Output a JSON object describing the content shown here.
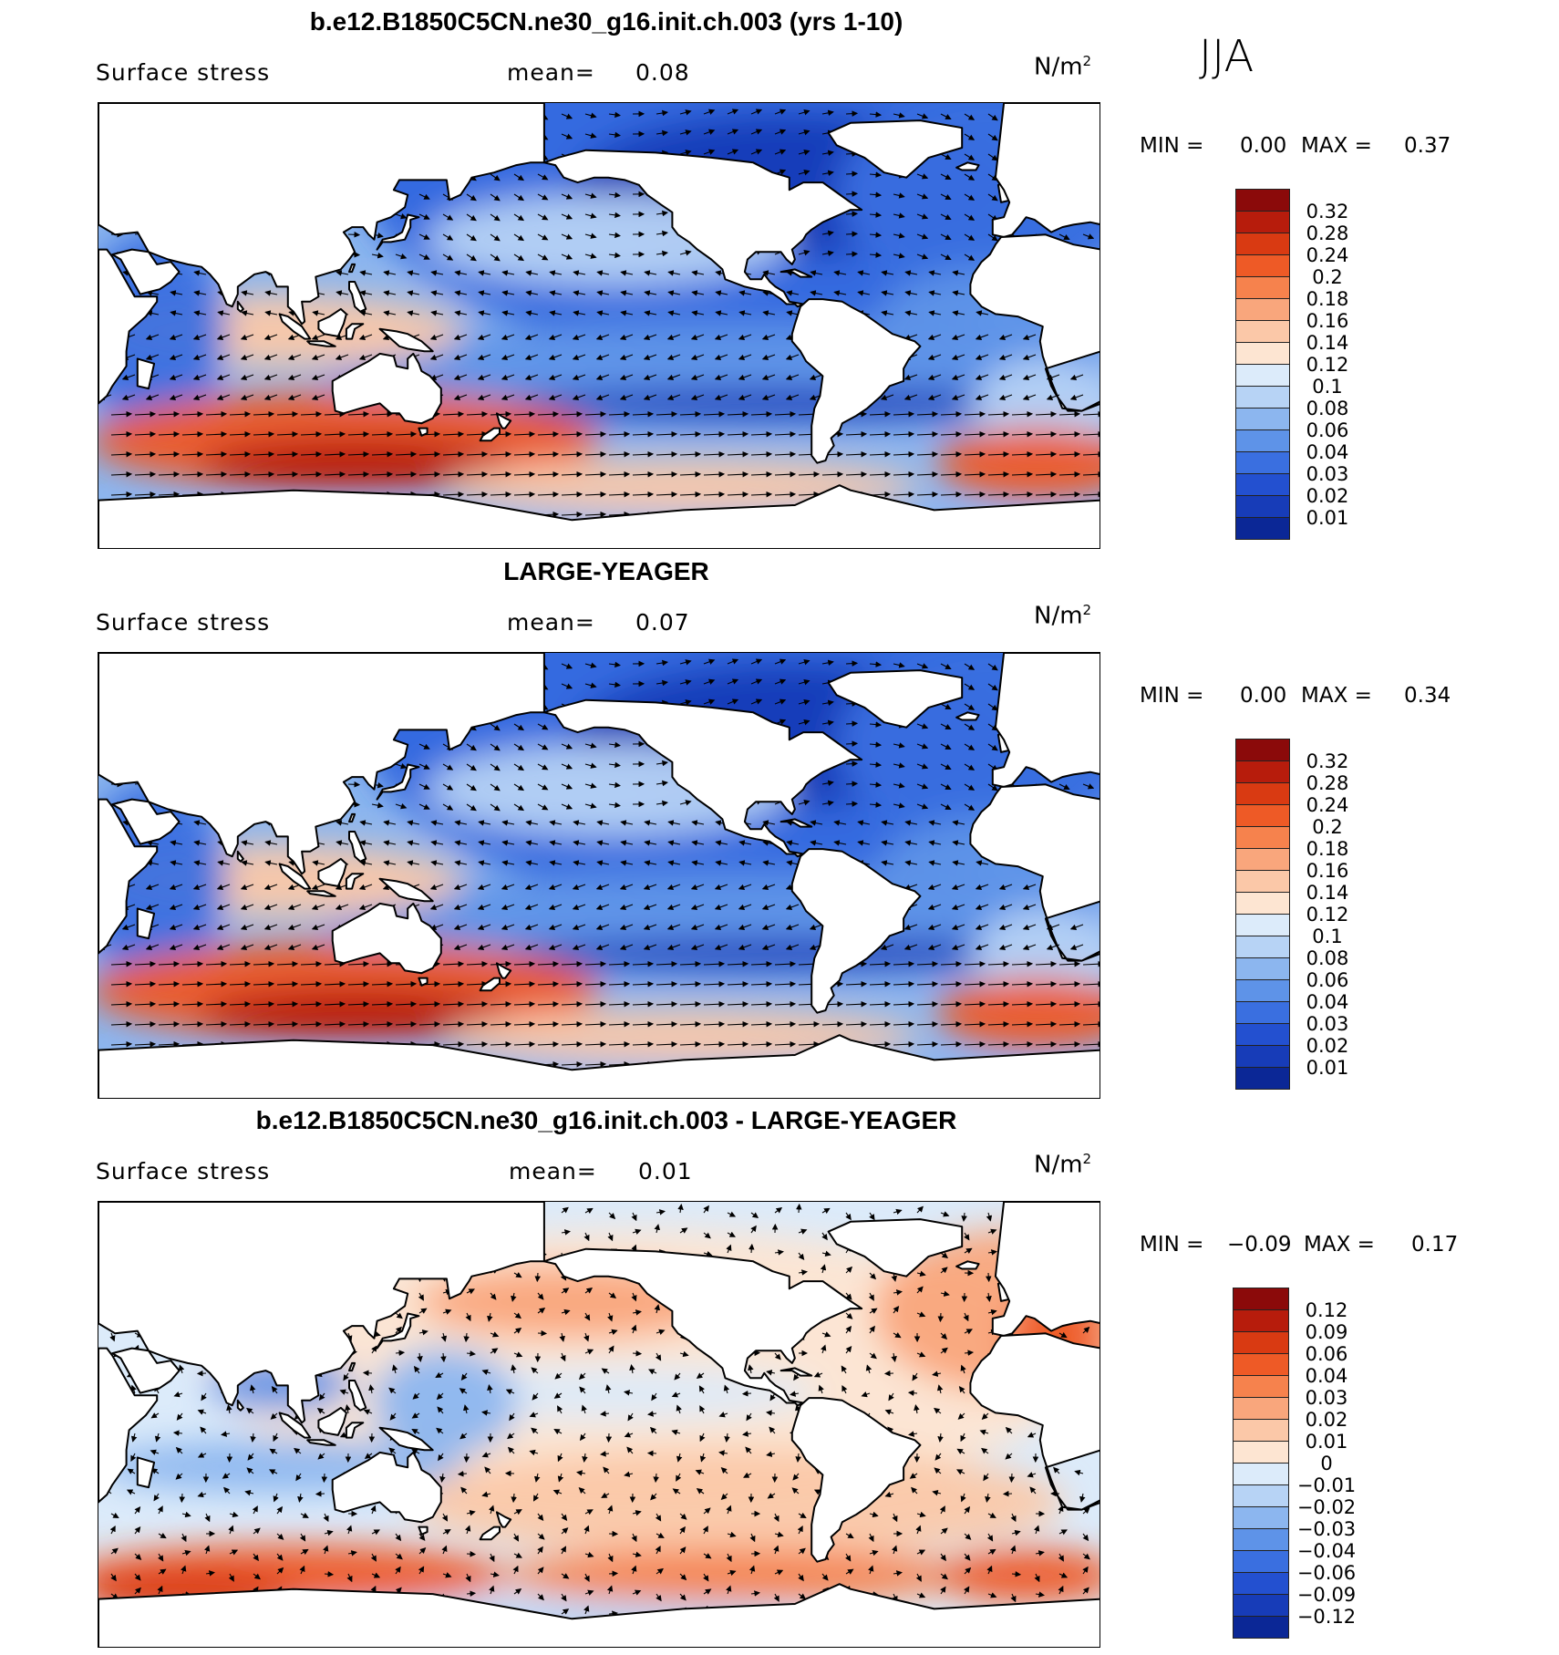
{
  "season": "JJA",
  "colors": {
    "land": "#ffffff",
    "coast": "#000000",
    "arrow": "#000000"
  },
  "panels": [
    {
      "title": "b.e12.B1850C5CN.ne30_g16.init.ch.003 (yrs 1-10)",
      "variable": "Surface stress",
      "mean_label": "mean=",
      "mean_value": "0.08",
      "units": "N/m",
      "units_sup": "2",
      "min_label": "MIN =",
      "min_value": "0.00",
      "max_label": "MAX =",
      "max_value": "0.37",
      "colorbar": {
        "labels": [
          "0.32",
          "0.28",
          "0.24",
          "0.2",
          "0.18",
          "0.16",
          "0.14",
          "0.12",
          "0.1",
          "0.08",
          "0.06",
          "0.04",
          "0.03",
          "0.02",
          "0.01"
        ],
        "colors": [
          "#8b0a0a",
          "#b71c0c",
          "#d93a12",
          "#ee5a26",
          "#f6824d",
          "#f9a67c",
          "#fbc8a8",
          "#fde5d2",
          "#dcebfa",
          "#b7d3f5",
          "#8cb6ef",
          "#5e93e8",
          "#3a6fe0",
          "#2350d0",
          "#173cb8",
          "#0b2796"
        ]
      },
      "map_type": "positive"
    },
    {
      "title": "LARGE-YEAGER",
      "variable": "Surface stress",
      "mean_label": "mean=",
      "mean_value": "0.07",
      "units": "N/m",
      "units_sup": "2",
      "min_label": "MIN =",
      "min_value": "0.00",
      "max_label": "MAX =",
      "max_value": "0.34",
      "colorbar": {
        "labels": [
          "0.32",
          "0.28",
          "0.24",
          "0.2",
          "0.18",
          "0.16",
          "0.14",
          "0.12",
          "0.1",
          "0.08",
          "0.06",
          "0.04",
          "0.03",
          "0.02",
          "0.01"
        ],
        "colors": [
          "#8b0a0a",
          "#b71c0c",
          "#d93a12",
          "#ee5a26",
          "#f6824d",
          "#f9a67c",
          "#fbc8a8",
          "#fde5d2",
          "#dcebfa",
          "#b7d3f5",
          "#8cb6ef",
          "#5e93e8",
          "#3a6fe0",
          "#2350d0",
          "#173cb8",
          "#0b2796"
        ]
      },
      "map_type": "positive"
    },
    {
      "title": "b.e12.B1850C5CN.ne30_g16.init.ch.003 - LARGE-YEAGER",
      "variable": "Surface stress",
      "mean_label": "mean=",
      "mean_value": "0.01",
      "units": "N/m",
      "units_sup": "2",
      "min_label": "MIN =",
      "min_value": "−0.09",
      "max_label": "MAX =",
      "max_value": "0.17",
      "colorbar": {
        "labels": [
          "0.12",
          "0.09",
          "0.06",
          "0.04",
          "0.03",
          "0.02",
          "0.01",
          "0",
          "−0.01",
          "−0.02",
          "−0.03",
          "−0.04",
          "−0.06",
          "−0.09",
          "−0.12"
        ],
        "colors": [
          "#8b0a0a",
          "#b71c0c",
          "#d93a12",
          "#ee5a26",
          "#f6824d",
          "#f9a67c",
          "#fbc8a8",
          "#fde5d2",
          "#dcebfa",
          "#b7d3f5",
          "#8cb6ef",
          "#5e93e8",
          "#3a6fe0",
          "#2350d0",
          "#173cb8",
          "#0b2796"
        ]
      },
      "map_type": "difference"
    }
  ]
}
